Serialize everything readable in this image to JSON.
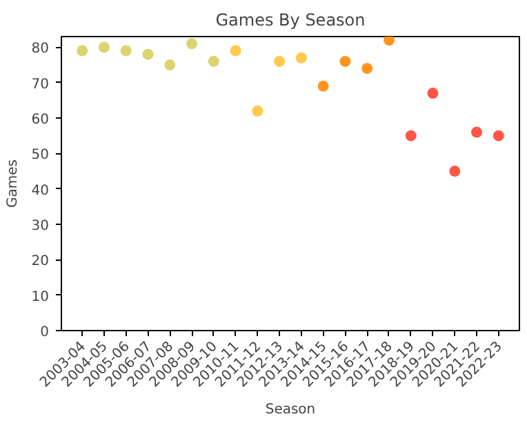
{
  "chart_data": {
    "type": "scatter",
    "title": "Games By Season",
    "xlabel": "Season",
    "ylabel": "Games",
    "categories": [
      "2003-04",
      "2004-05",
      "2005-06",
      "2006-07",
      "2007-08",
      "2008-09",
      "2009-10",
      "2010-11",
      "2011-12",
      "2012-13",
      "2013-14",
      "2014-15",
      "2015-16",
      "2016-17",
      "2017-18",
      "2018-19",
      "2019-20",
      "2020-21",
      "2021-22",
      "2022-23"
    ],
    "values": [
      79,
      80,
      79,
      78,
      75,
      81,
      76,
      79,
      62,
      76,
      77,
      69,
      76,
      74,
      82,
      55,
      67,
      45,
      56,
      55
    ],
    "colors": [
      "#dcd46e",
      "#dcd46e",
      "#dcd46e",
      "#dcd46e",
      "#dcd46e",
      "#dcd46e",
      "#dcd46e",
      "#ffc94d",
      "#ffc94d",
      "#ffc94d",
      "#ffc94d",
      "#ff951f",
      "#ff951f",
      "#ff951f",
      "#ff951f",
      "#ff5646",
      "#ff5646",
      "#ff5646",
      "#ff5646",
      "#ff5646"
    ],
    "ylim": [
      0,
      83
    ],
    "yticks": [
      0,
      10,
      20,
      30,
      40,
      50,
      60,
      70,
      80
    ],
    "marker": "circle",
    "grid": false
  }
}
